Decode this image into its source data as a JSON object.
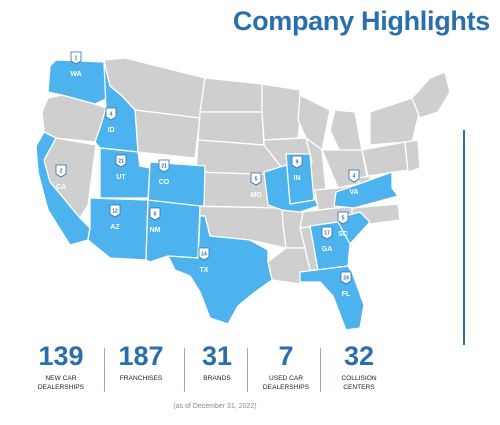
{
  "header": {
    "title": "Company Highlights"
  },
  "colors": {
    "accent": "#2a6fad",
    "state_active": "#4db3ee",
    "state_inactive": "#cfcfcf"
  },
  "states": [
    {
      "abbr": "WA",
      "count": "1"
    },
    {
      "abbr": "ID",
      "count": "4"
    },
    {
      "abbr": "CA",
      "count": "2"
    },
    {
      "abbr": "UT",
      "count": "21"
    },
    {
      "abbr": "CO",
      "count": "21"
    },
    {
      "abbr": "AZ",
      "count": "12"
    },
    {
      "abbr": "NM",
      "count": "6"
    },
    {
      "abbr": "TX",
      "count": "14"
    },
    {
      "abbr": "MO",
      "count": "5"
    },
    {
      "abbr": "IN",
      "count": "9"
    },
    {
      "abbr": "VA",
      "count": "4"
    },
    {
      "abbr": "SC",
      "count": "5"
    },
    {
      "abbr": "GA",
      "count": "17"
    },
    {
      "abbr": "FL",
      "count": "24"
    }
  ],
  "stats": [
    {
      "value": "139",
      "label": "NEW CAR\nDEALERSHIPS"
    },
    {
      "value": "187",
      "label": "FRANCHISES"
    },
    {
      "value": "31",
      "label": "BRANDS"
    },
    {
      "value": "7",
      "label": "USED CAR\nDEALERSHIPS"
    },
    {
      "value": "32",
      "label": "COLLISION\nCENTERS"
    }
  ],
  "footnote": "(as of December 31, 2022)"
}
